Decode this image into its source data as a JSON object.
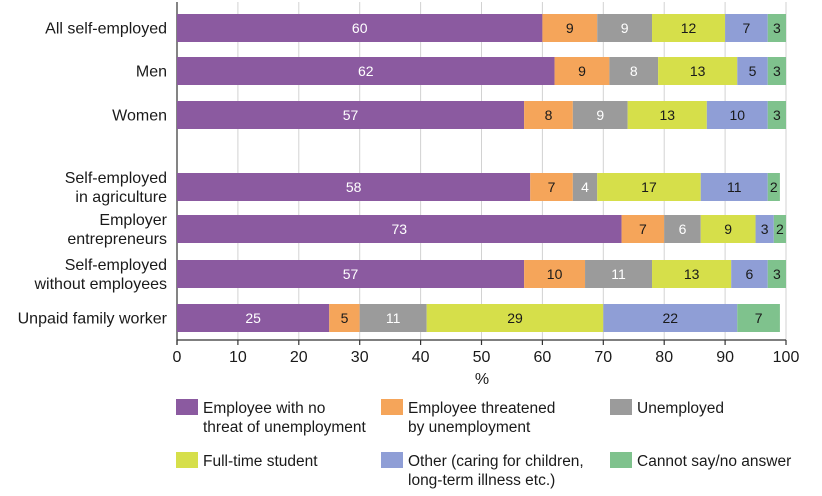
{
  "chart_data": {
    "type": "bar",
    "orientation": "horizontal",
    "stacked": true,
    "categories": [
      [
        "All self-employed"
      ],
      [
        "Men"
      ],
      [
        "Women"
      ],
      [
        "Self-employed",
        "in agriculture"
      ],
      [
        "Employer",
        "entrepreneurs"
      ],
      [
        "Self-employed",
        "without employees"
      ],
      [
        "Unpaid family worker"
      ]
    ],
    "xlabel": "%",
    "xlim": [
      0,
      100
    ],
    "xticks": [
      0,
      10,
      20,
      30,
      40,
      50,
      60,
      70,
      80,
      90,
      100
    ],
    "grid": true,
    "legend_position": "bottom",
    "series": [
      {
        "name": [
          "Employee with no",
          "threat of unemployment"
        ],
        "color": "#8b5aa0",
        "label_color": "#ffffff",
        "values": [
          60,
          62,
          57,
          58,
          73,
          57,
          25
        ]
      },
      {
        "name": [
          "Employee threatened",
          "by unemployment"
        ],
        "color": "#f5a55a",
        "label_color": "#1a1a1a",
        "values": [
          9,
          9,
          8,
          7,
          7,
          10,
          5
        ]
      },
      {
        "name": [
          "Unemployed"
        ],
        "color": "#9b9b9b",
        "label_color": "#ffffff",
        "values": [
          9,
          8,
          9,
          4,
          6,
          11,
          11
        ]
      },
      {
        "name": [
          "Full-time student"
        ],
        "color": "#d6df4a",
        "label_color": "#1a1a1a",
        "values": [
          12,
          13,
          13,
          17,
          9,
          13,
          29
        ]
      },
      {
        "name": [
          "Other (caring for children,",
          "long-term illness etc.)"
        ],
        "color": "#8f9ed6",
        "label_color": "#1a1a1a",
        "values": [
          7,
          5,
          10,
          11,
          3,
          6,
          22
        ]
      },
      {
        "name": [
          "Cannot say/no answer"
        ],
        "color": "#7fc28d",
        "label_color": "#1a1a1a",
        "values": [
          3,
          3,
          3,
          2,
          2,
          3,
          7
        ]
      }
    ]
  }
}
